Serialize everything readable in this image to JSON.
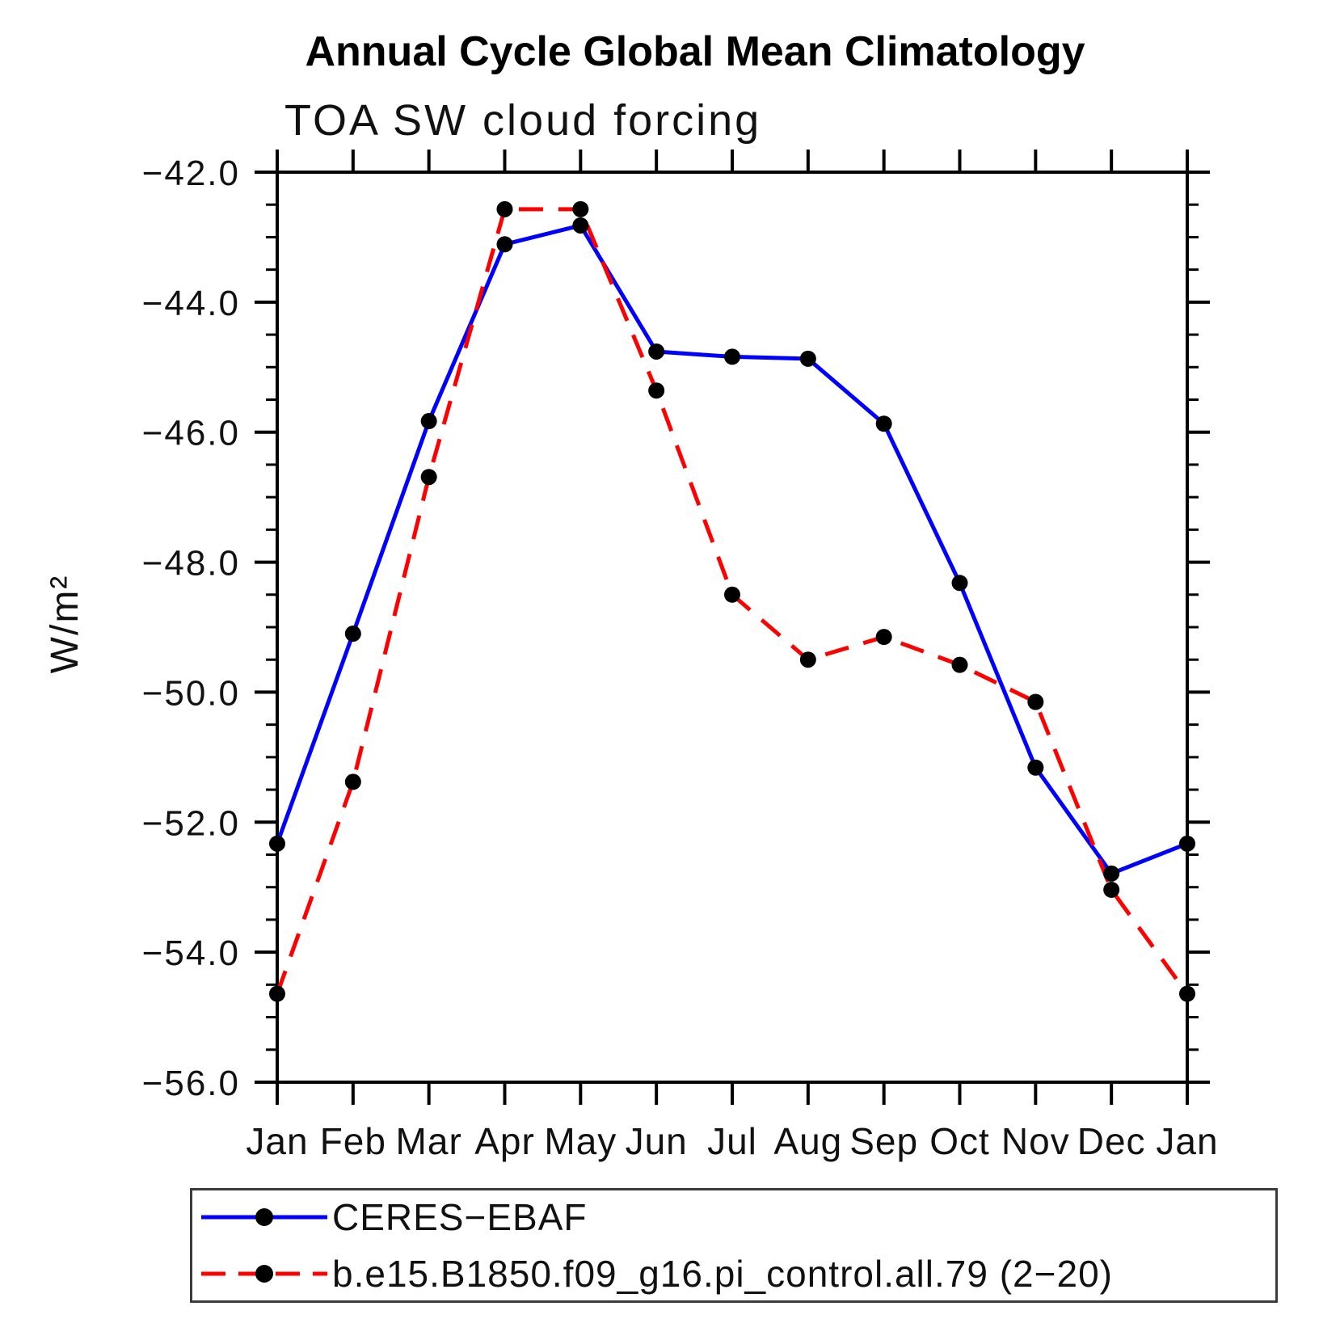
{
  "chart_data": {
    "type": "line",
    "title": "Annual Cycle Global Mean Climatology",
    "subtitle": "TOA SW cloud forcing",
    "ylabel": "W/m²",
    "categories": [
      "Jan",
      "Feb",
      "Mar",
      "Apr",
      "May",
      "Jun",
      "Jul",
      "Aug",
      "Sep",
      "Oct",
      "Nov",
      "Dec",
      "Jan"
    ],
    "y_axis": {
      "min": -56.0,
      "max": -42.0,
      "major_step": 2.0,
      "minor_step": 0.5,
      "tick_values": [
        -42.0,
        -44.0,
        -46.0,
        -48.0,
        -50.0,
        -52.0,
        -54.0,
        -56.0
      ],
      "tick_labels": [
        "−42.0",
        "−44.0",
        "−46.0",
        "−48.0",
        "−50.0",
        "−52.0",
        "−54.0",
        "−56.0"
      ]
    },
    "grid": false,
    "legend_position": "bottom",
    "series": [
      {
        "name": "CERES−EBAF",
        "color": "#0000ff",
        "line_style": "solid",
        "marker": "circle",
        "marker_color": "#000000",
        "values": [
          -52.33,
          -49.1,
          -45.83,
          -43.11,
          -42.82,
          -44.76,
          -44.84,
          -44.87,
          -45.87,
          -48.32,
          -51.16,
          -52.79,
          -52.33
        ]
      },
      {
        "name": "b.e15.B1850.f09_g16.pi_control.all.79 (2−20)",
        "color": "#ff0000",
        "line_style": "dashed",
        "marker": "circle",
        "marker_color": "#000000",
        "values": [
          -54.64,
          -51.38,
          -46.69,
          -42.57,
          -42.57,
          -45.36,
          -48.5,
          -49.5,
          -49.15,
          -49.58,
          -50.15,
          -53.04,
          -54.64
        ]
      }
    ]
  }
}
